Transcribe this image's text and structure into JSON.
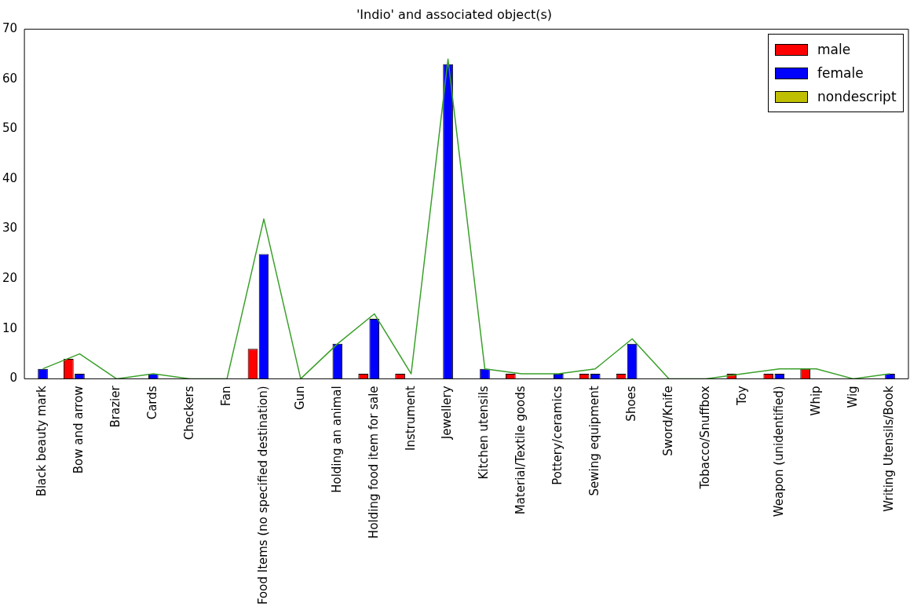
{
  "chart_data": {
    "type": "bar",
    "title": "'Indio' and associated object(s)",
    "categories": [
      "Black beauty mark",
      "Bow and arrow",
      "Brazier",
      "Cards",
      "Checkers",
      "Fan",
      "Food Items (no specified destination)",
      "Gun",
      "Holding an animal",
      "Holding food item for sale",
      "Instrument",
      "Jewellery",
      "Kitchen utensils",
      "Material/Textile goods",
      "Pottery/ceramics",
      "Sewing equipment",
      "Shoes",
      "Sword/Knife",
      "Tobacco/Snuffbox",
      "Toy",
      "Weapon (unidentified)",
      "Whip",
      "Wig",
      "Writing Utensils/Book"
    ],
    "series": [
      {
        "name": "male",
        "color": "#ff0000",
        "values": [
          0,
          4,
          0,
          0,
          0,
          0,
          6,
          0,
          0,
          1,
          1,
          0,
          0,
          1,
          0,
          1,
          1,
          0,
          0,
          1,
          1,
          2,
          0,
          0
        ]
      },
      {
        "name": "female",
        "color": "#0000ff",
        "values": [
          2,
          1,
          0,
          1,
          0,
          0,
          25,
          0,
          7,
          12,
          0,
          63,
          2,
          0,
          1,
          1,
          7,
          0,
          0,
          0,
          1,
          0,
          0,
          1
        ]
      },
      {
        "name": "nondescript",
        "color": "#bfbf00",
        "values": [
          0,
          0,
          0,
          0,
          0,
          0,
          0,
          0,
          0,
          0,
          0,
          0,
          0,
          0,
          0,
          0,
          0,
          0,
          0,
          0,
          0,
          0,
          0,
          0
        ]
      },
      {
        "type": "line",
        "color": "#3aa02a",
        "values": [
          2,
          5,
          0,
          1,
          0,
          0,
          32,
          0,
          7,
          13,
          1,
          64,
          2,
          1,
          1,
          2,
          8,
          0,
          0,
          1,
          2,
          2,
          0,
          1
        ]
      }
    ],
    "ylim": [
      0,
      70
    ],
    "yticks": [
      0,
      10,
      20,
      30,
      40,
      50,
      60,
      70
    ],
    "grid": false,
    "legend": "top right"
  }
}
